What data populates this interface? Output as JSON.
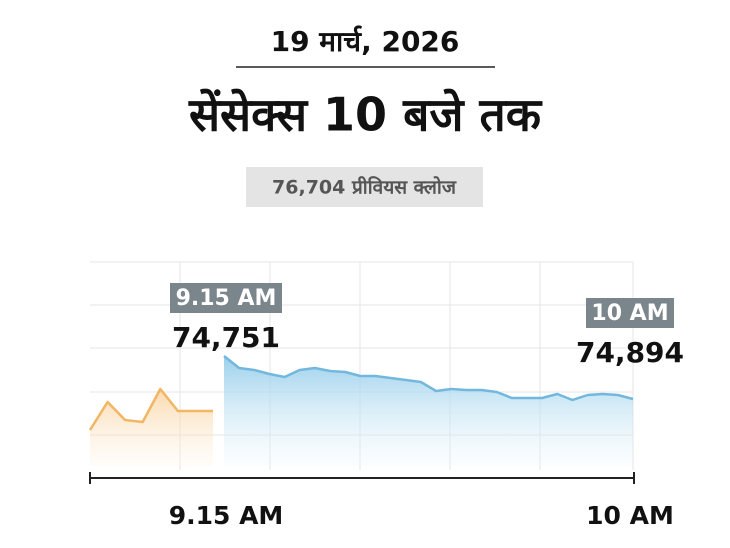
{
  "chart_data": {
    "type": "area",
    "date": "19 मार्च, 2026",
    "title": "सेंसेक्स 10 बजे तक",
    "subtitle": "76,704 प्रीवियस क्लोज",
    "ylim": [
      74400,
      75200
    ],
    "x_labels": [
      "9.15 AM",
      "10 AM"
    ],
    "annotations": [
      {
        "label": "9.15 AM",
        "text": "74,751"
      },
      {
        "label": "10 AM",
        "text": "74,894"
      }
    ],
    "series": [
      {
        "color": "#f2b564",
        "values": [
          74528,
          74640,
          74568,
          74560,
          74692,
          74604,
          74604,
          74604
        ]
      },
      {
        "color": "#72b8de",
        "values": [
          74824,
          74776,
          74768,
          74752,
          74740,
          74768,
          74776,
          74764,
          74760,
          74744,
          74744,
          74736,
          74728,
          74720,
          74684,
          74692,
          74688,
          74688,
          74680,
          74656,
          74656,
          74656,
          74672,
          74648,
          74668,
          74672,
          74668,
          74652
        ]
      }
    ]
  }
}
